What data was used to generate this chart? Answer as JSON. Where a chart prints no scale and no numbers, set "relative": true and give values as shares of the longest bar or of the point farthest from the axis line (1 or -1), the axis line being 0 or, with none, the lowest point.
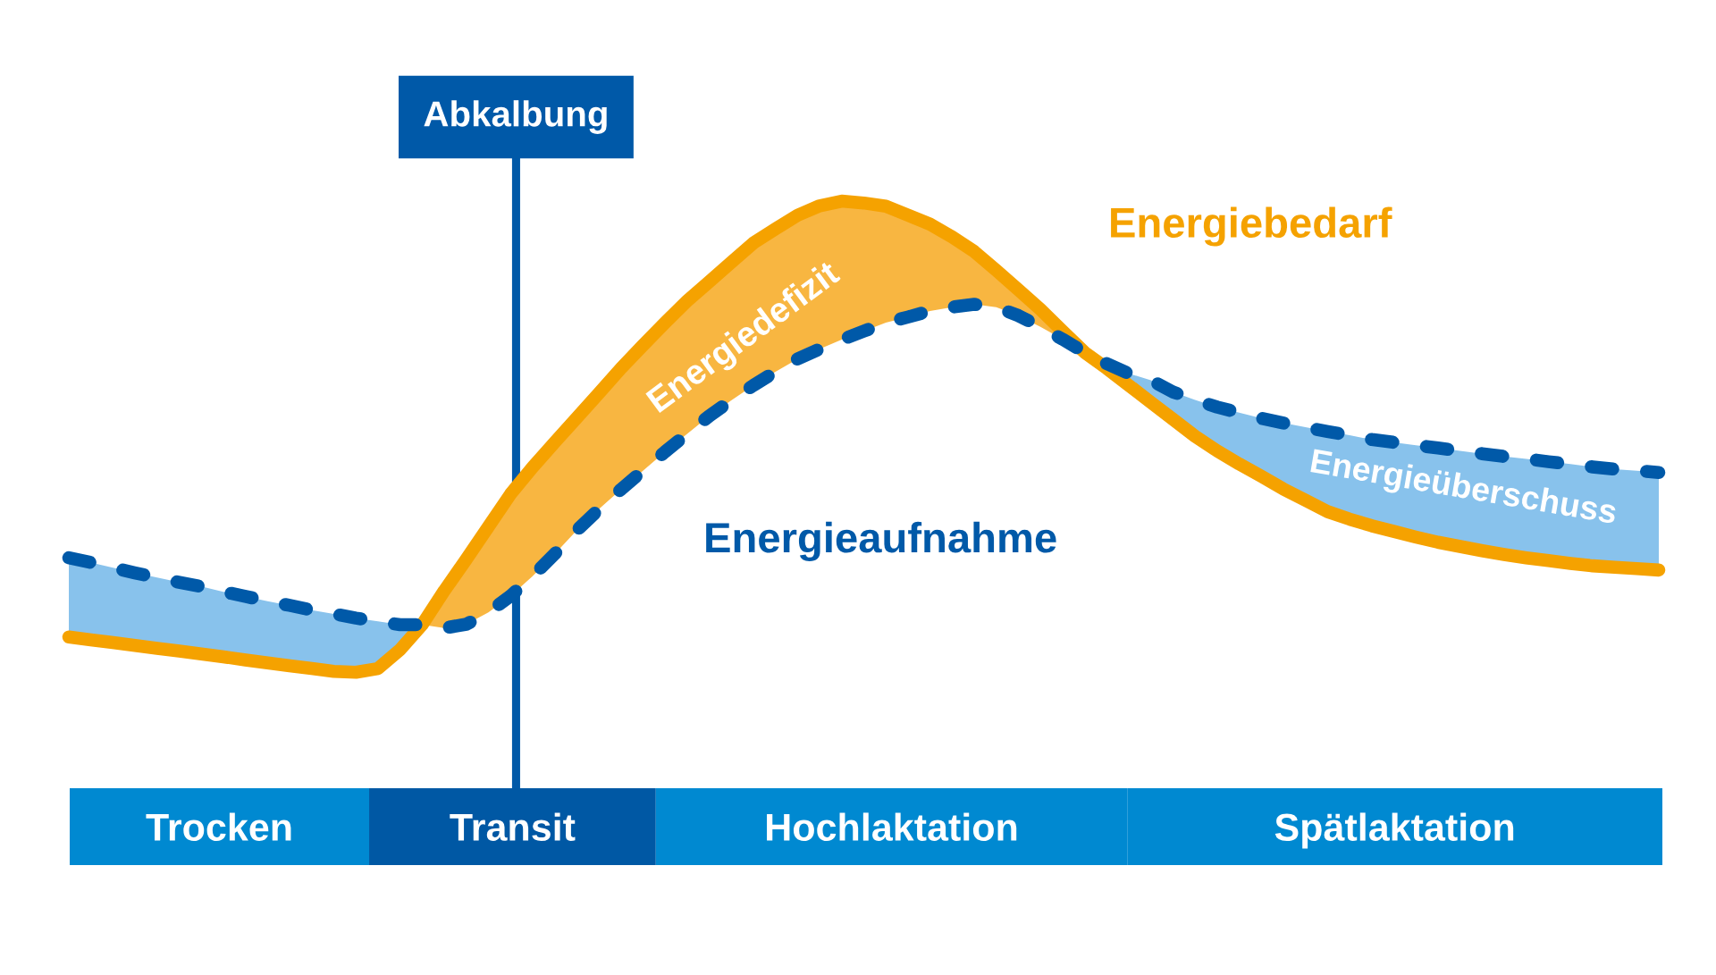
{
  "chart_data": [
    {
      "type": "line",
      "relative": true,
      "categories": [
        null,
        null,
        null,
        null,
        null,
        null,
        null,
        null,
        null,
        null,
        null,
        null,
        null,
        null,
        null,
        null,
        null,
        null,
        null,
        null,
        null,
        null,
        null,
        null,
        null,
        null,
        null,
        null,
        null,
        null,
        null,
        null,
        null,
        null,
        null,
        null,
        null,
        null,
        null,
        null,
        null,
        null,
        null,
        null,
        null,
        null,
        null,
        null,
        null,
        null,
        null,
        null,
        null,
        null,
        null,
        null,
        null,
        null,
        null,
        null,
        null,
        null,
        null,
        null,
        null,
        null,
        null,
        null,
        null,
        null,
        null,
        null,
        null
      ],
      "series": [
        {
          "name": "Energiebedarf",
          "color": "#f5a200",
          "line_style": "solid",
          "values": [
            0.075,
            0.069,
            0.063,
            0.057,
            0.051,
            0.045,
            0.039,
            0.033,
            0.026,
            0.02,
            0.014,
            0.008,
            0.002,
            0,
            0.008,
            0.048,
            0.101,
            0.173,
            0.24,
            0.309,
            0.378,
            0.435,
            0.488,
            0.54,
            0.592,
            0.645,
            0.694,
            0.742,
            0.788,
            0.829,
            0.87,
            0.911,
            0.941,
            0.97,
            0.99,
            1,
            0.996,
            0.989,
            0.97,
            0.951,
            0.924,
            0.893,
            0.853,
            0.812,
            0.77,
            0.724,
            0.679,
            0.645,
            0.609,
            0.573,
            0.537,
            0.501,
            0.47,
            0.442,
            0.416,
            0.389,
            0.365,
            0.341,
            0.325,
            0.311,
            0.299,
            0.287,
            0.276,
            0.267,
            0.258,
            0.25,
            0.243,
            0.237,
            0.231,
            0.226,
            0.223,
            0.22,
            0.217
          ]
        },
        {
          "name": "Energieaufnahme",
          "color": "#0059a8",
          "line_style": "dashed",
          "values": [
            0.243,
            0.233,
            0.222,
            0.211,
            0.201,
            0.191,
            0.182,
            0.171,
            0.161,
            0.151,
            0.142,
            0.132,
            0.124,
            0.115,
            0.108,
            0.101,
            0.101,
            0.094,
            0.102,
            0.127,
            0.162,
            0.204,
            0.251,
            0.301,
            0.346,
            0.388,
            0.428,
            0.468,
            0.506,
            0.544,
            0.577,
            0.609,
            0.638,
            0.665,
            0.686,
            0.706,
            0.724,
            0.742,
            0.754,
            0.767,
            0.775,
            0.781,
            0.775,
            0.757,
            0.733,
            0.707,
            0.679,
            0.655,
            0.634,
            0.62,
            0.595,
            0.578,
            0.563,
            0.551,
            0.539,
            0.529,
            0.52,
            0.511,
            0.503,
            0.494,
            0.488,
            0.482,
            0.476,
            0.47,
            0.464,
            0.458,
            0.453,
            0.447,
            0.442,
            0.436,
            0.431,
            0.428,
            0.424
          ]
        },
        {
          "type": "area",
          "name": "Energiedefizit",
          "color": "#f8b641",
          "values": [
            null,
            null,
            null,
            null,
            null,
            null,
            null,
            null,
            null,
            null,
            null,
            null,
            null,
            null,
            null,
            null,
            0.101,
            0.173,
            0.24,
            0.309,
            0.378,
            0.435,
            0.488,
            0.54,
            0.592,
            0.645,
            0.694,
            0.742,
            0.788,
            0.829,
            0.87,
            0.911,
            0.941,
            0.97,
            0.99,
            1,
            0.996,
            0.989,
            0.97,
            0.951,
            0.924,
            0.893,
            0.853,
            0.812,
            0.77,
            0.724,
            0.679,
            null,
            null,
            null,
            null,
            null,
            null,
            null,
            null,
            null,
            null,
            null,
            null,
            null,
            null,
            null,
            null,
            null,
            null,
            null,
            null,
            null,
            null,
            null,
            null,
            null,
            null
          ]
        },
        {
          "type": "area",
          "name": "Energieüberschuss",
          "color": "#88c2ec",
          "values": [
            0.243,
            0.233,
            0.222,
            0.211,
            0.201,
            0.191,
            0.182,
            0.171,
            0.161,
            0.151,
            0.142,
            0.132,
            0.124,
            0.115,
            0.108,
            0.101,
            0.101,
            null,
            null,
            null,
            null,
            null,
            null,
            null,
            null,
            null,
            null,
            null,
            null,
            null,
            null,
            null,
            null,
            null,
            null,
            null,
            null,
            null,
            null,
            null,
            null,
            null,
            null,
            null,
            null,
            null,
            0.679,
            0.655,
            0.634,
            0.62,
            0.595,
            0.578,
            0.563,
            0.551,
            0.539,
            0.529,
            0.52,
            0.511,
            0.503,
            0.494,
            0.488,
            0.482,
            0.476,
            0.47,
            0.464,
            0.458,
            0.453,
            0.447,
            0.442,
            0.436,
            0.431,
            0.428,
            0.424
          ]
        }
      ],
      "annotations": [
        "Abkalbung"
      ],
      "grid": false,
      "legend": false
    },
    {
      "type": "bar",
      "orientation": "horizontal",
      "stacked": true,
      "relative": true,
      "categories": [
        null
      ],
      "series": [
        {
          "name": "Trocken",
          "color": "#0089d1",
          "values": [
            0.188
          ]
        },
        {
          "name": "Transit",
          "color": "#0058a4",
          "values": [
            0.18
          ]
        },
        {
          "name": "Hochlaktation",
          "color": "#0089d1",
          "values": [
            0.296
          ]
        },
        {
          "name": "Spätlaktation",
          "color": "#0089d1",
          "values": [
            0.336
          ]
        }
      ]
    }
  ]
}
